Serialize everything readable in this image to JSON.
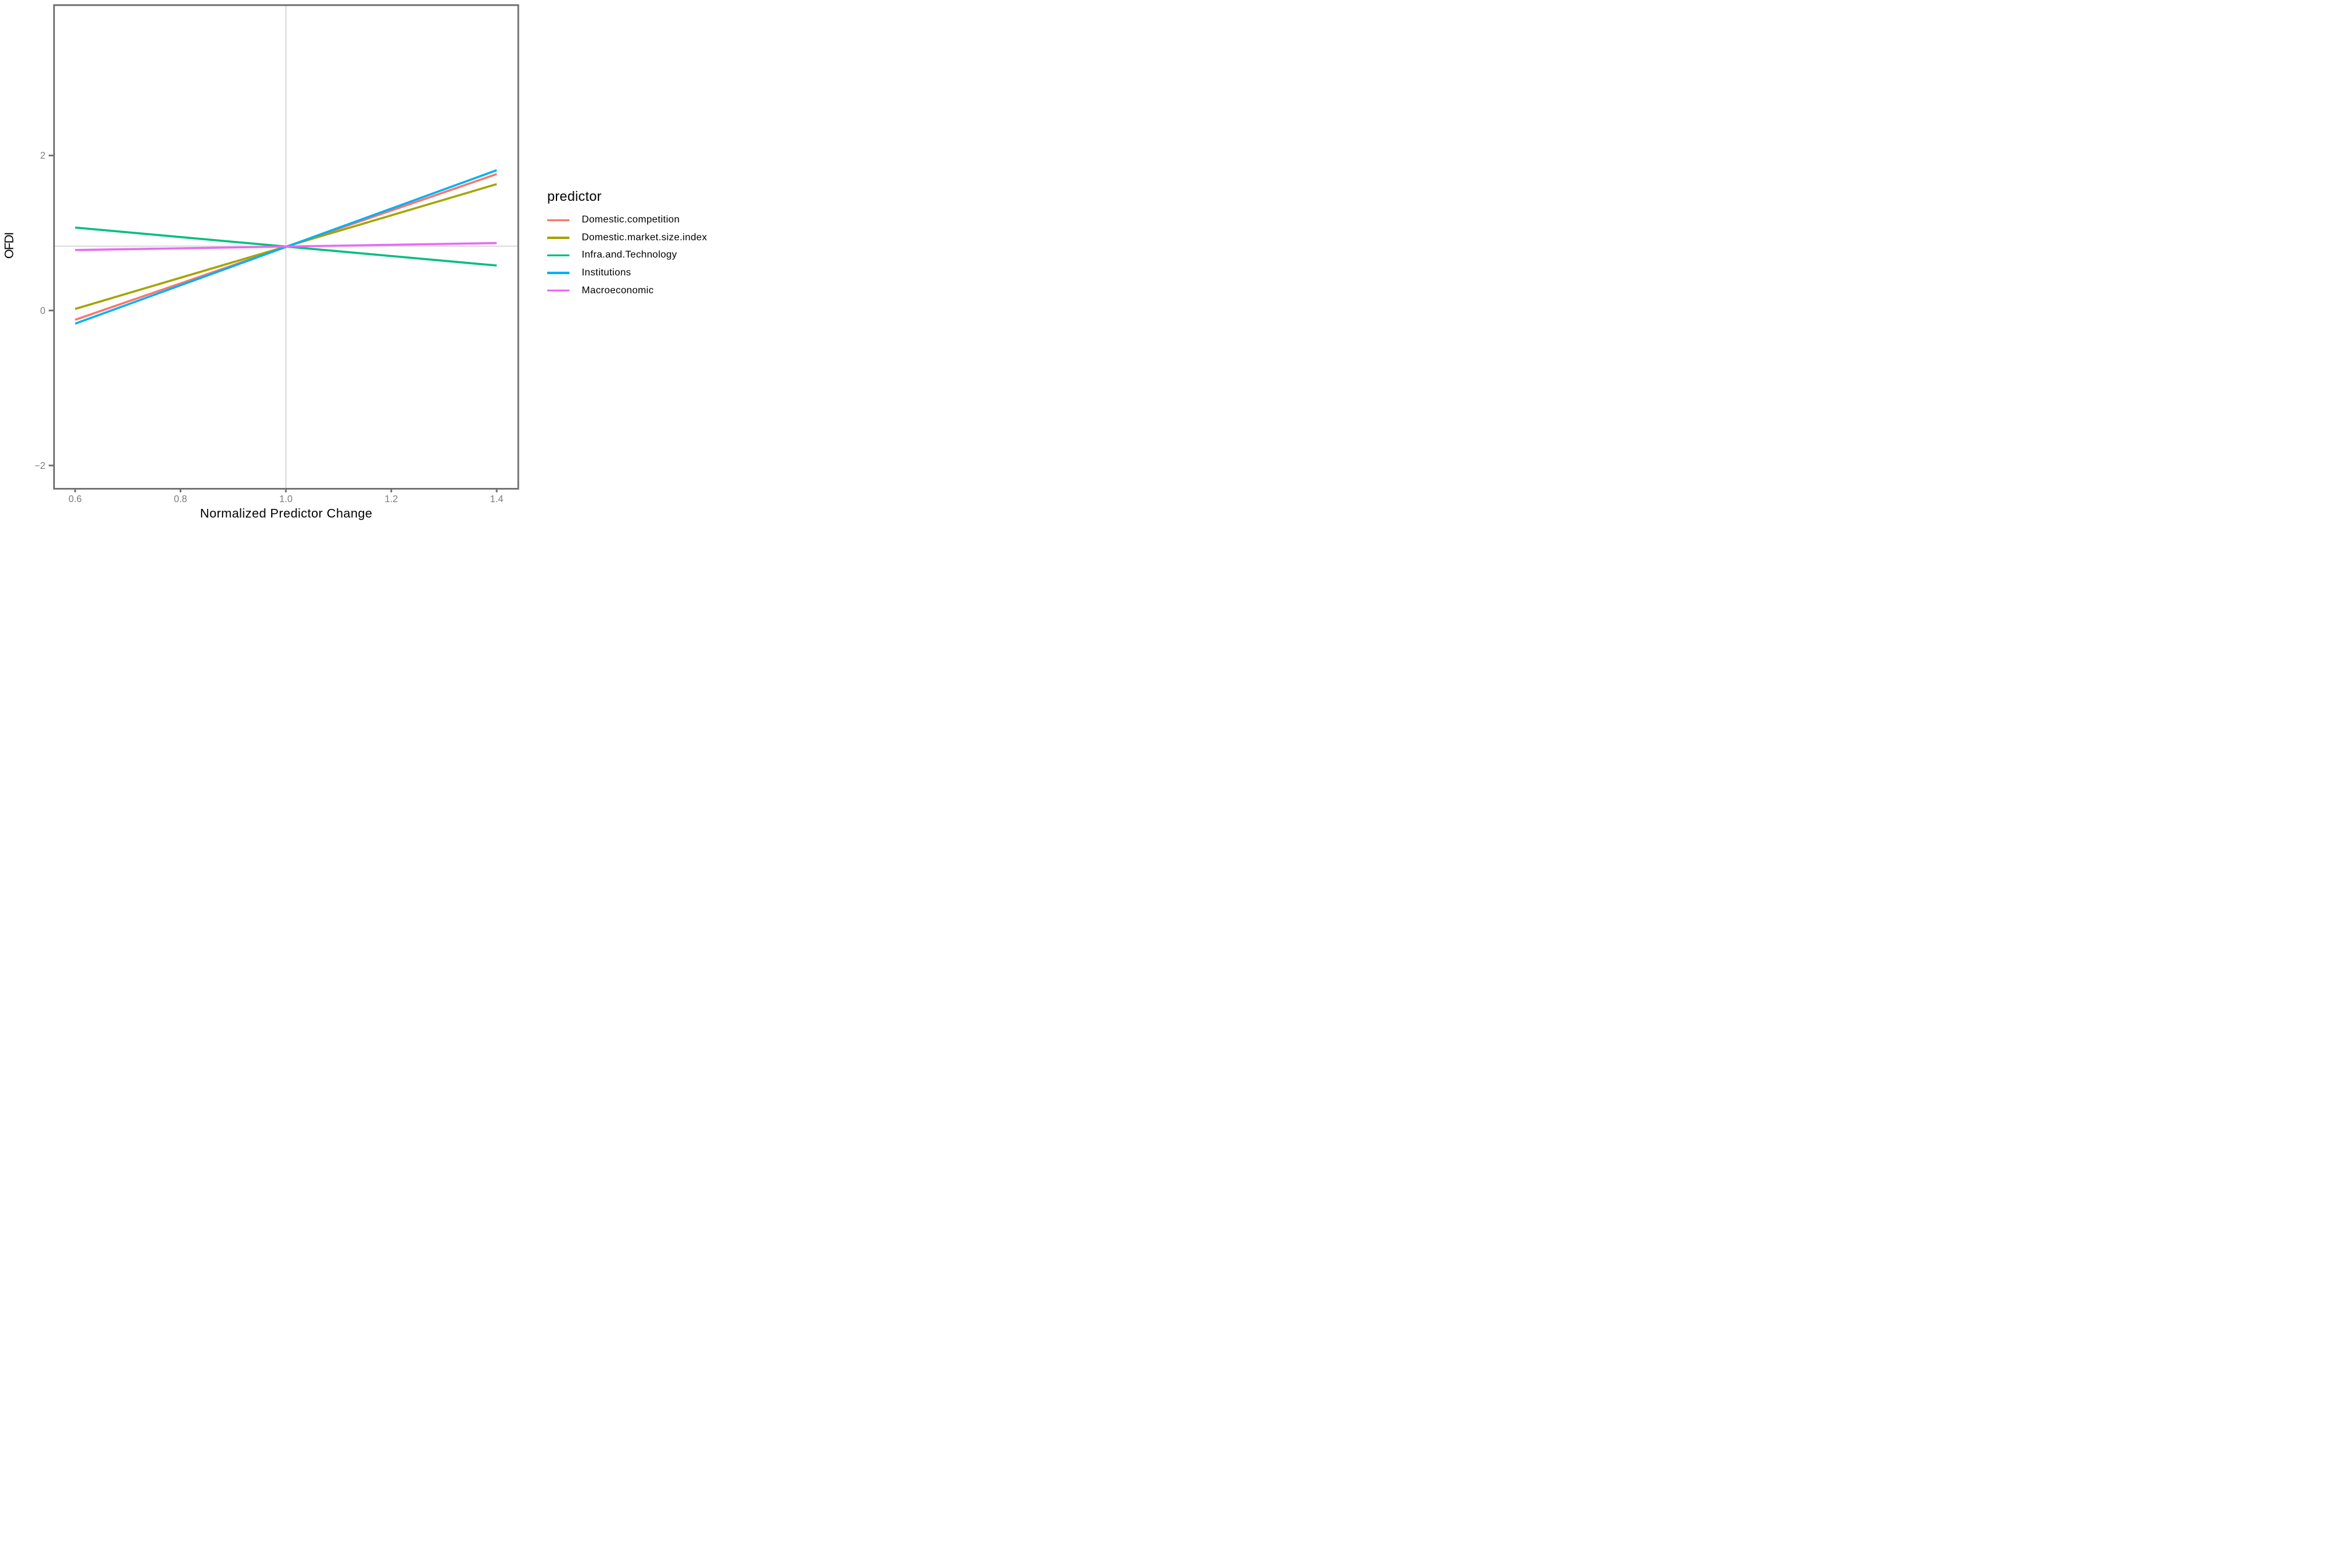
{
  "chart_data": {
    "type": "line",
    "title": "",
    "xlabel": "Normalized Predictor Change",
    "ylabel": "OFDI",
    "xlim": [
      0.56,
      1.441
    ],
    "ylim": [
      -2.3,
      3.94
    ],
    "grid": "off",
    "x_ticks": [
      {
        "v": 0.6,
        "label": "0.6"
      },
      {
        "v": 0.8,
        "label": "0.8"
      },
      {
        "v": 1.0,
        "label": "1.0"
      },
      {
        "v": 1.2,
        "label": "1.2"
      },
      {
        "v": 1.4,
        "label": "1.4"
      }
    ],
    "y_ticks": [
      {
        "v": -2,
        "label": "−2"
      },
      {
        "v": 0,
        "label": "0"
      },
      {
        "v": 2,
        "label": "2"
      }
    ],
    "reference_lines": {
      "horizontal_y": 0.83,
      "vertical_x": 1.0,
      "color": "#dcdcdc"
    },
    "panel": {
      "border_color": "#6e6e6e",
      "background": "#ffffff"
    },
    "legend": {
      "title": "predictor",
      "position": "right"
    },
    "series": [
      {
        "name": "Domestic.competition",
        "color": "#F8766D",
        "x": [
          0.6,
          1.4
        ],
        "y": [
          -0.12,
          1.76
        ]
      },
      {
        "name": "Domestic.market.size.index",
        "color": "#A3A500",
        "x": [
          0.6,
          1.4
        ],
        "y": [
          0.02,
          1.63
        ]
      },
      {
        "name": "Infra.and.Technology",
        "color": "#00BF7D",
        "x": [
          0.6,
          1.4
        ],
        "y": [
          1.07,
          0.58
        ]
      },
      {
        "name": "Institutions",
        "color": "#00B0F6",
        "x": [
          0.6,
          1.4
        ],
        "y": [
          -0.17,
          1.81
        ]
      },
      {
        "name": "Macroeconomic",
        "color": "#E76BF3",
        "x": [
          0.6,
          1.4
        ],
        "y": [
          0.78,
          0.87
        ]
      }
    ]
  }
}
